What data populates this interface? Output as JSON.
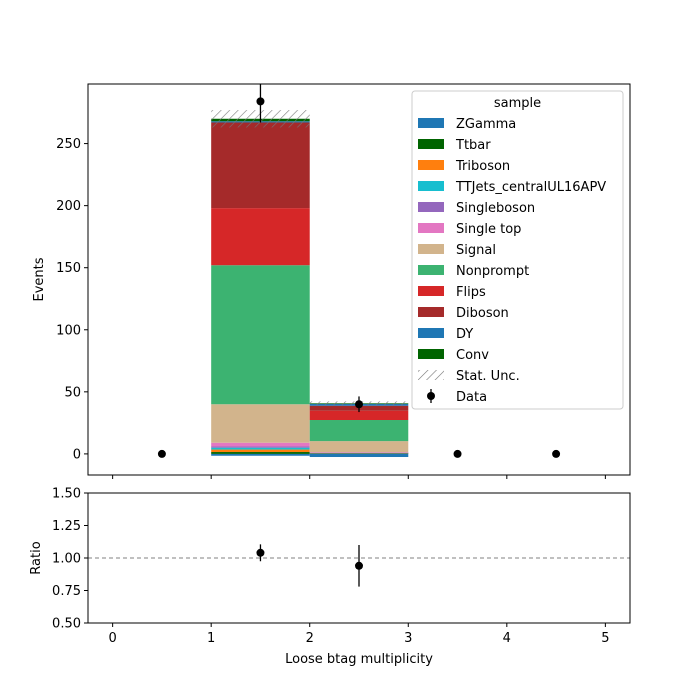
{
  "chart_data": [
    {
      "type": "bar",
      "stacked": true,
      "categories": [
        "0",
        "1",
        "2",
        "3",
        "4"
      ],
      "x": [
        0.5,
        1.5,
        2.5,
        3.5,
        4.5
      ],
      "bin_edges": [
        0,
        1,
        2,
        3,
        4,
        5
      ],
      "ylabel": "Events",
      "xlim": [
        -0.25,
        5.25
      ],
      "ylim": [
        -17,
        298
      ],
      "yticks": [
        0,
        50,
        100,
        150,
        200,
        250
      ],
      "xticks": [
        0,
        1,
        2,
        3,
        4,
        5
      ],
      "legend": {
        "title": "sample",
        "placement": "top-right",
        "stat_label": "Stat. Unc.",
        "data_label": "Data"
      },
      "series": [
        {
          "name": "ZGamma",
          "color": "#1f77b4",
          "values": [
            0,
            -1.5,
            -2.5,
            0,
            0
          ]
        },
        {
          "name": "Ttbar",
          "color": "#006400",
          "values": [
            0,
            1.5,
            0.5,
            0,
            0
          ]
        },
        {
          "name": "Triboson",
          "color": "#ff7f0e",
          "values": [
            0,
            2,
            0.2,
            0,
            0
          ]
        },
        {
          "name": "TTJets_centralUL16APV",
          "color": "#17becf",
          "values": [
            0,
            1.5,
            0.2,
            0,
            0
          ]
        },
        {
          "name": "Singleboson",
          "color": "#9467bd",
          "values": [
            0,
            1,
            0.1,
            0,
            0
          ]
        },
        {
          "name": "Single top",
          "color": "#e377c2",
          "values": [
            0,
            3,
            0.3,
            0,
            0
          ]
        },
        {
          "name": "Signal",
          "color": "#d2b48c",
          "values": [
            0,
            31,
            9,
            0,
            0
          ]
        },
        {
          "name": "Nonprompt",
          "color": "#3cb371",
          "values": [
            0,
            112,
            17,
            0,
            0
          ]
        },
        {
          "name": "Flips",
          "color": "#d62728",
          "values": [
            0,
            46,
            7.5,
            0,
            0
          ]
        },
        {
          "name": "Diboson",
          "color": "#a52a2a",
          "values": [
            0,
            69,
            4,
            0,
            0
          ]
        },
        {
          "name": "DY",
          "color": "#1f77b4",
          "values": [
            0,
            1,
            1.5,
            0,
            0
          ]
        },
        {
          "name": "Conv",
          "color": "#006400",
          "values": [
            0,
            2,
            0.5,
            0,
            0
          ]
        }
      ],
      "stat_unc": [
        0,
        7,
        1.5,
        0,
        0
      ],
      "data": {
        "values": [
          0,
          284,
          40,
          0,
          0
        ],
        "errors": [
          0,
          17,
          6.3,
          0,
          0
        ]
      }
    },
    {
      "type": "scatter",
      "xlabel": "Loose btag multiplicity",
      "ylabel": "Ratio",
      "xlim": [
        -0.25,
        5.25
      ],
      "ylim": [
        0.5,
        1.5
      ],
      "yticks": [
        "0.50",
        "0.75",
        "1.00",
        "1.25",
        "1.50"
      ],
      "xticks": [
        "0",
        "1",
        "2",
        "3",
        "4",
        "5"
      ],
      "reference_line": 1.0,
      "points": [
        {
          "x": 1.5,
          "y": 1.04,
          "err": 0.065
        },
        {
          "x": 2.5,
          "y": 0.94,
          "err": 0.16
        }
      ]
    }
  ]
}
